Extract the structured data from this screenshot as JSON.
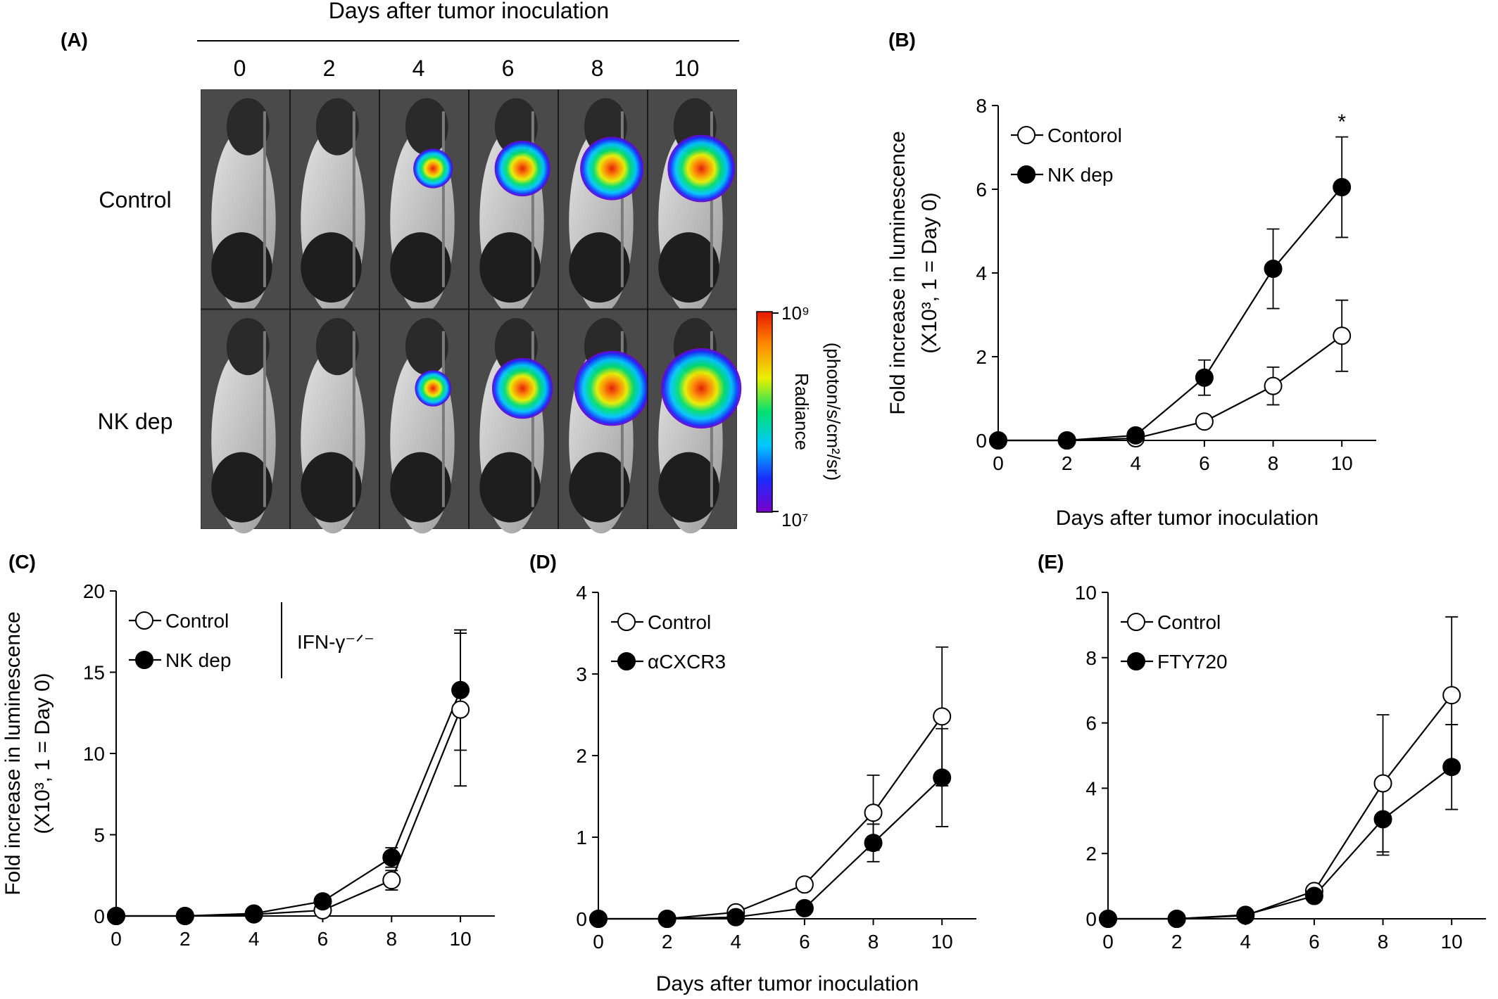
{
  "panel_a": {
    "label": "(A)",
    "title": "Days after tumor inoculation",
    "days": [
      "0",
      "2",
      "4",
      "6",
      "8",
      "10"
    ],
    "rows": [
      {
        "name": "Control",
        "intensity": [
          0,
          0,
          0.35,
          0.6,
          0.72,
          0.78
        ]
      },
      {
        "name": "NK dep",
        "intensity": [
          0,
          0,
          0.3,
          0.68,
          0.9,
          0.98
        ]
      }
    ],
    "colorbar": {
      "title": "Radiance",
      "units": "(photon/s/cm²/sr)",
      "max_label": "10⁹",
      "min_label": "10⁷",
      "colors": [
        "#7a00c8",
        "#1a2cff",
        "#00c8ff",
        "#00e070",
        "#e8f000",
        "#ff8c00",
        "#e81800"
      ]
    }
  },
  "chart_data": [
    {
      "id": "B",
      "label": "(B)",
      "type": "line",
      "xlabel": "Days after tumor inoculation",
      "ylabel_lines": [
        "Fold increase in luminescence",
        "(X10³, 1 = Day 0)"
      ],
      "xticks": [
        0,
        2,
        4,
        6,
        8,
        10
      ],
      "yticks": [
        0,
        2,
        4,
        6,
        8
      ],
      "xlim": [
        0,
        11
      ],
      "ylim": [
        0,
        8
      ],
      "legend": {
        "placement": "top-left"
      },
      "annotations": [
        {
          "text": "*",
          "x": 10,
          "y": 7.75
        }
      ],
      "series": [
        {
          "name": "Contorol",
          "marker": "open-circle",
          "x": [
            0,
            2,
            4,
            6,
            8,
            10
          ],
          "y": [
            0,
            0,
            0.05,
            0.45,
            1.3,
            2.5
          ],
          "err": [
            0,
            0,
            0,
            0,
            0.45,
            0.85
          ]
        },
        {
          "name": "NK dep",
          "marker": "filled-circle",
          "x": [
            0,
            2,
            4,
            6,
            8,
            10
          ],
          "y": [
            0,
            0,
            0.12,
            1.5,
            4.1,
            6.05
          ],
          "err": [
            0,
            0,
            0,
            0.42,
            0.95,
            1.2
          ]
        }
      ]
    },
    {
      "id": "C",
      "label": "(C)",
      "type": "line",
      "xlabel": "",
      "ylabel_lines": [
        "Fold increase in luminescence",
        "(X10³, 1 = Day 0)"
      ],
      "xticks": [
        0,
        2,
        4,
        6,
        8,
        10
      ],
      "yticks": [
        0,
        5,
        10,
        15,
        20
      ],
      "xlim": [
        0,
        11
      ],
      "ylim": [
        0,
        20
      ],
      "legend": {
        "placement": "top-left",
        "side_note": "IFN-γ⁻ᐟ⁻"
      },
      "series": [
        {
          "name": "Control",
          "marker": "open-circle",
          "x": [
            0,
            2,
            4,
            6,
            8,
            10
          ],
          "y": [
            0,
            0,
            0.1,
            0.35,
            2.2,
            12.7
          ],
          "err": [
            0,
            0,
            0,
            0,
            0.6,
            4.7
          ]
        },
        {
          "name": "NK dep",
          "marker": "filled-circle",
          "x": [
            0,
            2,
            4,
            6,
            8,
            10
          ],
          "y": [
            0,
            0,
            0.15,
            0.9,
            3.6,
            13.9
          ],
          "err": [
            0,
            0,
            0,
            0,
            0.6,
            3.7
          ]
        }
      ]
    },
    {
      "id": "D",
      "label": "(D)",
      "type": "line",
      "xlabel": "Days after tumor inoculation",
      "ylabel_lines": [],
      "xticks": [
        0,
        2,
        4,
        6,
        8,
        10
      ],
      "yticks": [
        0,
        1,
        2,
        3,
        4
      ],
      "xlim": [
        0,
        11
      ],
      "ylim": [
        0,
        4
      ],
      "legend": {
        "placement": "top-left"
      },
      "series": [
        {
          "name": "Control",
          "marker": "open-circle",
          "x": [
            0,
            2,
            4,
            6,
            8,
            10
          ],
          "y": [
            0,
            0,
            0.08,
            0.42,
            1.3,
            2.48
          ],
          "err": [
            0,
            0,
            0,
            0,
            0.46,
            0.85
          ]
        },
        {
          "name": "αCXCR3",
          "marker": "filled-circle",
          "x": [
            0,
            2,
            4,
            6,
            8,
            10
          ],
          "y": [
            0,
            0,
            0.02,
            0.13,
            0.93,
            1.73
          ],
          "err": [
            0,
            0,
            0,
            0,
            0.23,
            0.6
          ]
        }
      ]
    },
    {
      "id": "E",
      "label": "(E)",
      "type": "line",
      "xlabel": "",
      "ylabel_lines": [],
      "xticks": [
        0,
        2,
        4,
        6,
        8,
        10
      ],
      "yticks": [
        0,
        2,
        4,
        6,
        8,
        10
      ],
      "xlim": [
        0,
        11
      ],
      "ylim": [
        0,
        10
      ],
      "legend": {
        "placement": "top-left"
      },
      "series": [
        {
          "name": "Control",
          "marker": "open-circle",
          "x": [
            0,
            2,
            4,
            6,
            8,
            10
          ],
          "y": [
            0,
            0,
            0.1,
            0.85,
            4.15,
            6.85
          ],
          "err": [
            0,
            0,
            0,
            0,
            2.1,
            2.4
          ]
        },
        {
          "name": "FTY720",
          "marker": "filled-circle",
          "x": [
            0,
            2,
            4,
            6,
            8,
            10
          ],
          "y": [
            0,
            0,
            0.12,
            0.7,
            3.05,
            4.65
          ],
          "err": [
            0,
            0,
            0,
            0,
            1.1,
            1.3
          ]
        }
      ]
    }
  ]
}
